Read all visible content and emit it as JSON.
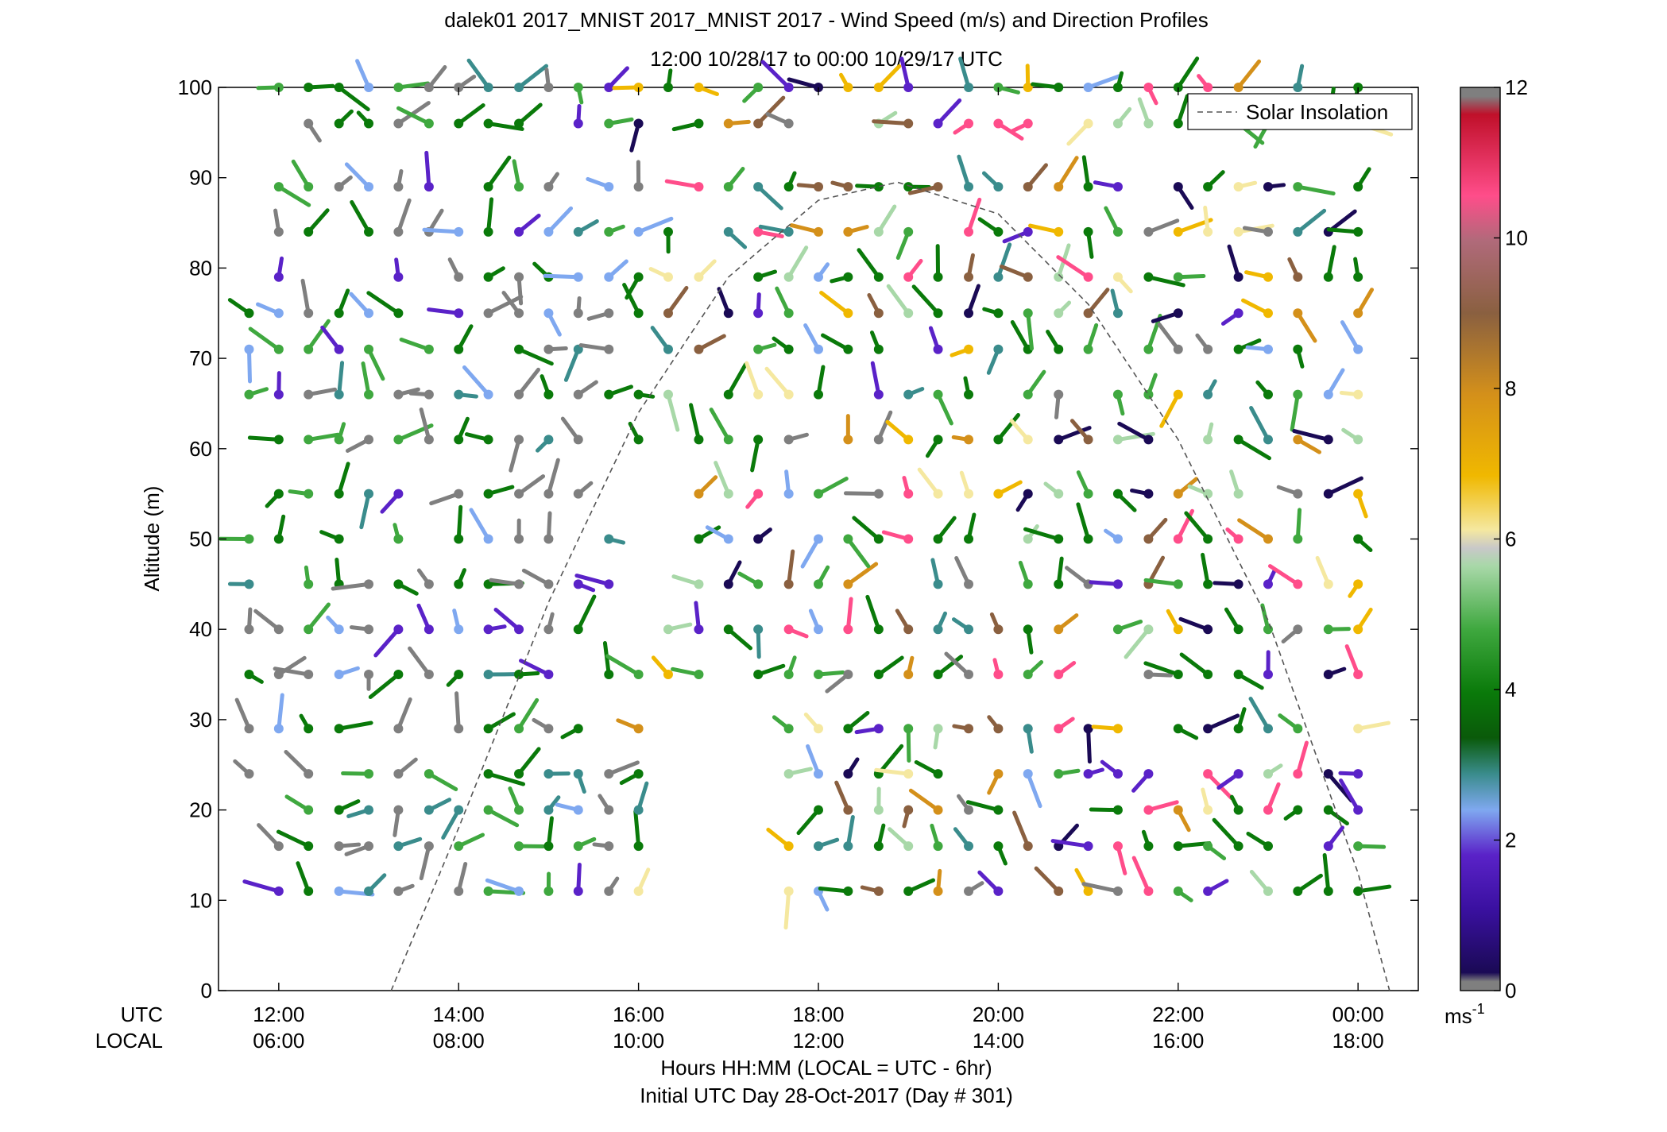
{
  "chart_data": {
    "type": "wind_profile",
    "title": "dalek01 2017_MNIST 2017_MNIST 2017 - Wind Speed (m/s) and Direction Profiles",
    "subtitle": "12:00 10/28/17 to 00:00 10/29/17  UTC",
    "ylabel": "Altitude (m)",
    "xlabel": "Hours HH:MM  (LOCAL = UTC - 6hr)",
    "xlabel2": "Initial UTC Day 28-Oct-2017 (Day # 301)",
    "utc_label": "UTC",
    "local_label": "LOCAL",
    "xlim_hours_utc": [
      11.33,
      24.67
    ],
    "ylim": [
      0,
      100
    ],
    "y_ticks": [
      0,
      10,
      20,
      30,
      40,
      50,
      60,
      70,
      80,
      90,
      100
    ],
    "x_ticks_hours_utc": [
      12,
      14,
      16,
      18,
      20,
      22,
      24
    ],
    "x_tick_labels_utc": [
      "12:00",
      "14:00",
      "16:00",
      "18:00",
      "20:00",
      "22:00",
      "00:00"
    ],
    "x_tick_labels_local": [
      "06:00",
      "08:00",
      "10:00",
      "12:00",
      "14:00",
      "16:00",
      "18:00"
    ],
    "colorbar": {
      "min": 0,
      "max": 12,
      "ticks": [
        0,
        2,
        4,
        6,
        8,
        10,
        12
      ],
      "unit_label": "ms",
      "unit_exponent": "-1",
      "colors": {
        "under": "#7f7f7f",
        "dark_purple": "#1a0a55",
        "purple": "#5a22c8",
        "light_blue": "#7fa8f0",
        "teal": "#3a8c8c",
        "dark_green": "#0a7a0a",
        "green": "#3fa83f",
        "light_green": "#a8d8a8",
        "pale_yellow": "#f5e8a0",
        "gold": "#f0b800",
        "orange": "#d4901a",
        "brown": "#8a6040",
        "pink": "#ff4d8a",
        "red": "#c0102a",
        "over": "#7f7f7f"
      }
    },
    "legend": {
      "entries": [
        "Solar Insolation"
      ],
      "position": "top-right",
      "style": "dashed"
    },
    "solar_insolation_curve": {
      "t_hours_utc": [
        13.25,
        14.0,
        15.0,
        16.0,
        17.0,
        18.0,
        18.88,
        20.0,
        21.0,
        22.0,
        23.0,
        24.0,
        24.35
      ],
      "altitude_scaled": [
        0.0,
        18.0,
        43.0,
        64.0,
        79.0,
        87.5,
        89.5,
        86.0,
        76.0,
        61.0,
        41.0,
        13.0,
        0.0
      ]
    },
    "wind": {
      "notes": "Wind barbs: dot at (time, altitude), colored stalk shows direction; color = speed (m/s).",
      "times_hours_utc": [
        11.67,
        12.0,
        12.33,
        12.67,
        13.0,
        13.33,
        13.67,
        14.0,
        14.33,
        14.67,
        15.0,
        15.33,
        15.67,
        16.0,
        16.33,
        16.67,
        17.0,
        17.33,
        17.67,
        18.0,
        18.33,
        18.67,
        19.0,
        19.33,
        19.67,
        20.0,
        20.33,
        20.67,
        21.0,
        21.33,
        21.67,
        22.0,
        22.33,
        22.67,
        23.0,
        23.33,
        23.67,
        24.0
      ],
      "altitudes_m": [
        11,
        16,
        20,
        24,
        29,
        35,
        40,
        45,
        50,
        55,
        61,
        66,
        71,
        75,
        79,
        84,
        89,
        96,
        100
      ]
    }
  }
}
